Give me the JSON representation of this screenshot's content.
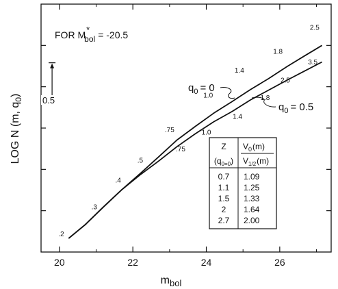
{
  "chart_data": {
    "type": "line",
    "title": "",
    "xlabel_main": "m",
    "xlabel_sub": "bol",
    "ylabel": "LOG N (m, q",
    "ylabel_sub": "0",
    "ylabel_tail": ")",
    "xlim": [
      19.5,
      27.4
    ],
    "ylim": [
      0.0,
      3.0
    ],
    "x_ticks": [
      20,
      22,
      24,
      26
    ],
    "x_minor_ticks": [
      21,
      23,
      25,
      27
    ],
    "y_ticks": [
      0.5,
      1.0,
      1.5,
      2.0,
      2.5
    ],
    "grid": false,
    "annotation_main": {
      "prefix": "FOR M",
      "sup": "*",
      "sub": "bol",
      "suffix": "= -20.5"
    },
    "scale_bar": {
      "label": "0.5",
      "from": 1.79,
      "to": 2.29,
      "x": 19.8
    },
    "series": [
      {
        "name": "q0 = 0",
        "label_main": "q",
        "label_sub": "0",
        "label_tail": "= 0",
        "x": [
          20.25,
          20.7,
          21.2,
          21.7,
          22.2,
          22.7,
          23.2,
          23.7,
          24.2,
          24.7,
          25.2,
          25.7,
          26.2,
          26.7,
          27.15
        ],
        "y": [
          0.165,
          0.33,
          0.545,
          0.755,
          0.95,
          1.15,
          1.355,
          1.52,
          1.68,
          1.82,
          1.965,
          2.1,
          2.245,
          2.38,
          2.5
        ]
      },
      {
        "name": "q0 = 0.5",
        "label_main": "q",
        "label_sub": "0",
        "label_tail": "= 0.5",
        "x": [
          20.25,
          20.7,
          21.2,
          21.7,
          22.2,
          22.7,
          23.2,
          23.7,
          24.2,
          24.7,
          25.2,
          25.7,
          26.2,
          26.7,
          27.15
        ],
        "y": [
          0.165,
          0.33,
          0.545,
          0.755,
          0.935,
          1.1,
          1.275,
          1.43,
          1.575,
          1.7,
          1.84,
          1.96,
          2.08,
          2.195,
          2.3
        ]
      }
    ],
    "z_labels_q0": [
      {
        "text": ".2",
        "x": 20.05,
        "y": 0.19
      },
      {
        "text": ".3",
        "x": 20.95,
        "y": 0.52
      },
      {
        "text": ".4",
        "x": 21.6,
        "y": 0.84
      },
      {
        "text": ".5",
        "x": 22.2,
        "y": 1.08
      },
      {
        "text": ".75",
        "x": 23.0,
        "y": 1.45
      },
      {
        "text": "1.0",
        "x": 24.05,
        "y": 1.87
      },
      {
        "text": "1.4",
        "x": 24.9,
        "y": 2.17
      },
      {
        "text": "1.8",
        "x": 25.95,
        "y": 2.4
      },
      {
        "text": "2.5",
        "x": 26.95,
        "y": 2.69
      }
    ],
    "z_labels_q05": [
      {
        "text": ".75",
        "x": 23.3,
        "y": 1.22
      },
      {
        "text": "1.0",
        "x": 24.0,
        "y": 1.42
      },
      {
        "text": "1.4",
        "x": 24.85,
        "y": 1.61
      },
      {
        "text": "1.8",
        "x": 25.6,
        "y": 1.84
      },
      {
        "text": "2.5",
        "x": 26.15,
        "y": 2.05
      },
      {
        "text": "3.5",
        "x": 26.9,
        "y": 2.27
      }
    ],
    "table": {
      "col1_header": "Z",
      "col1_sub_main": "(q",
      "col1_sub_sub": "0=0",
      "col1_sub_tail": ")",
      "col2_header": "V",
      "col2_header_sub": "0",
      "col2_header_tail": "(m)",
      "col2_sub": "V",
      "col2_sub_sub": "1/2",
      "col2_sub_tail": "(m)",
      "rows": [
        [
          "0.7",
          "1.09"
        ],
        [
          "1.1",
          "1.25"
        ],
        [
          "1.5",
          "1.33"
        ],
        [
          "2",
          "1.64"
        ],
        [
          "2.7",
          "2.00"
        ]
      ]
    }
  }
}
